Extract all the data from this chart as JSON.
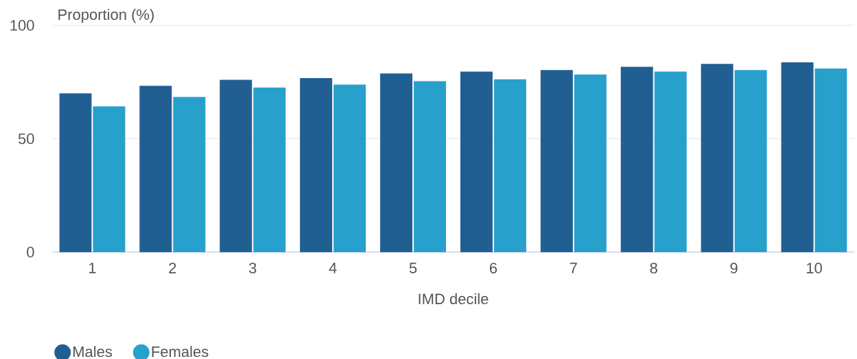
{
  "chart_data": {
    "type": "bar",
    "xlabel": "IMD decile",
    "ylabel": "Proportion (%)",
    "categories": [
      "1",
      "2",
      "3",
      "4",
      "5",
      "6",
      "7",
      "8",
      "9",
      "10"
    ],
    "series": [
      {
        "name": "Males",
        "color": "#215f93",
        "values": [
          70.0,
          73.3,
          76.0,
          76.7,
          78.8,
          79.6,
          80.3,
          81.7,
          83.0,
          83.7
        ]
      },
      {
        "name": "Females",
        "color": "#28a0cc",
        "values": [
          64.3,
          68.4,
          72.6,
          73.9,
          75.4,
          76.2,
          78.3,
          79.6,
          80.3,
          81.0
        ]
      }
    ],
    "ylim": [
      0,
      100
    ],
    "yticks": [
      0,
      50,
      100
    ],
    "grid": "y",
    "legend": "bottom left"
  }
}
